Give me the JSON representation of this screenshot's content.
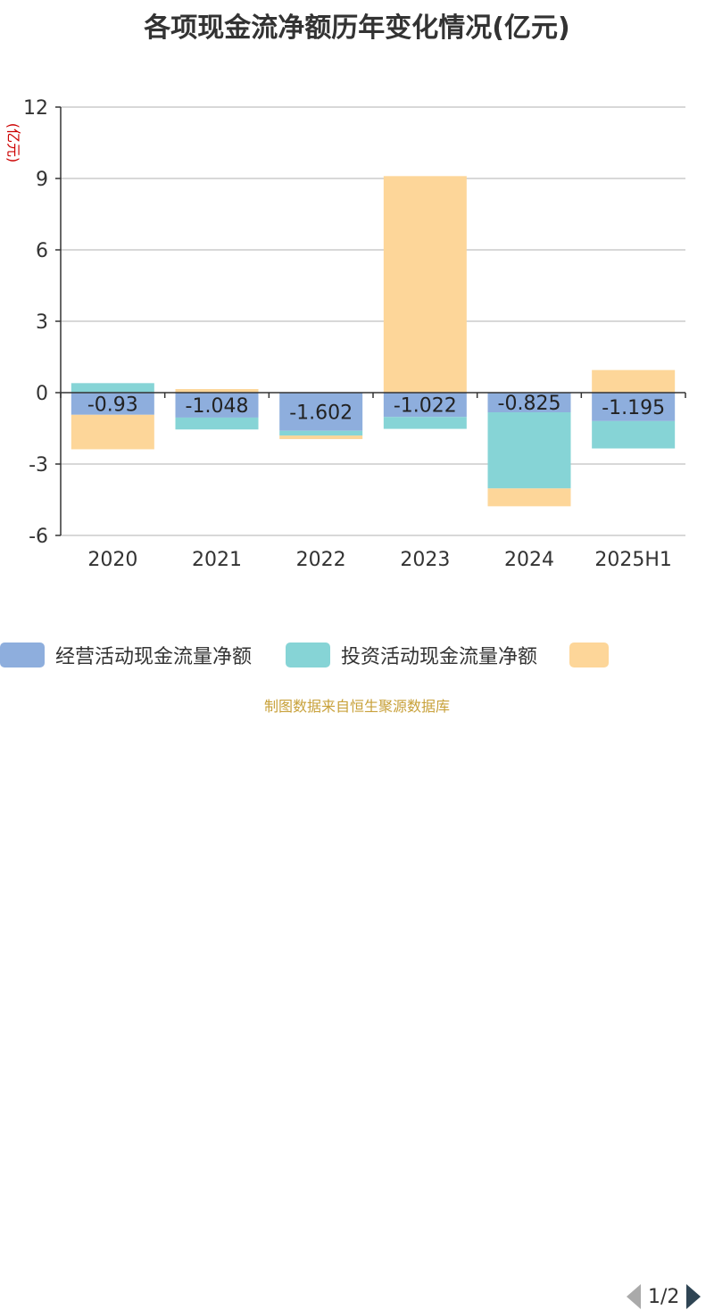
{
  "title": "各项现金流净额历年变化情况(亿元)",
  "unit_label": "(亿元)",
  "source": "制图数据来自恒生聚源数据库",
  "legend": {
    "items": [
      {
        "label": "经营活动现金流量净额",
        "color": "#8eaedd"
      },
      {
        "label": "投资活动现金流量净额",
        "color": "#86d4d6"
      },
      {
        "label": "",
        "color": "#fdd699"
      }
    ],
    "pager": "1/2"
  },
  "chart_data": {
    "type": "bar",
    "stacked": true,
    "categories": [
      "2020",
      "2021",
      "2022",
      "2023",
      "2024",
      "2025H1"
    ],
    "ylim": [
      -6,
      12
    ],
    "yticks": [
      -6,
      -3,
      0,
      3,
      6,
      9,
      12
    ],
    "ytick_labels": [
      "-6",
      "-3",
      "0",
      "3",
      "6",
      "9",
      "12"
    ],
    "grid": true,
    "series": [
      {
        "name": "经营活动现金流量净额",
        "values": [
          -0.93,
          -1.048,
          -1.602,
          -1.022,
          -0.825,
          -1.195
        ],
        "color": "#8eaedd",
        "labels": [
          "-0.93",
          "-1.048",
          "-1.602",
          "-1.022",
          "-0.825",
          "-1.195"
        ]
      },
      {
        "name": "投资活动现金流量净额",
        "values": [
          0.4,
          -0.5,
          -0.2,
          -0.5,
          -3.2,
          -1.15
        ],
        "color": "#86d4d6"
      },
      {
        "values": [
          -1.45,
          0.15,
          -0.15,
          9.1,
          -0.75,
          0.95
        ],
        "color": "#fdd699"
      }
    ]
  }
}
